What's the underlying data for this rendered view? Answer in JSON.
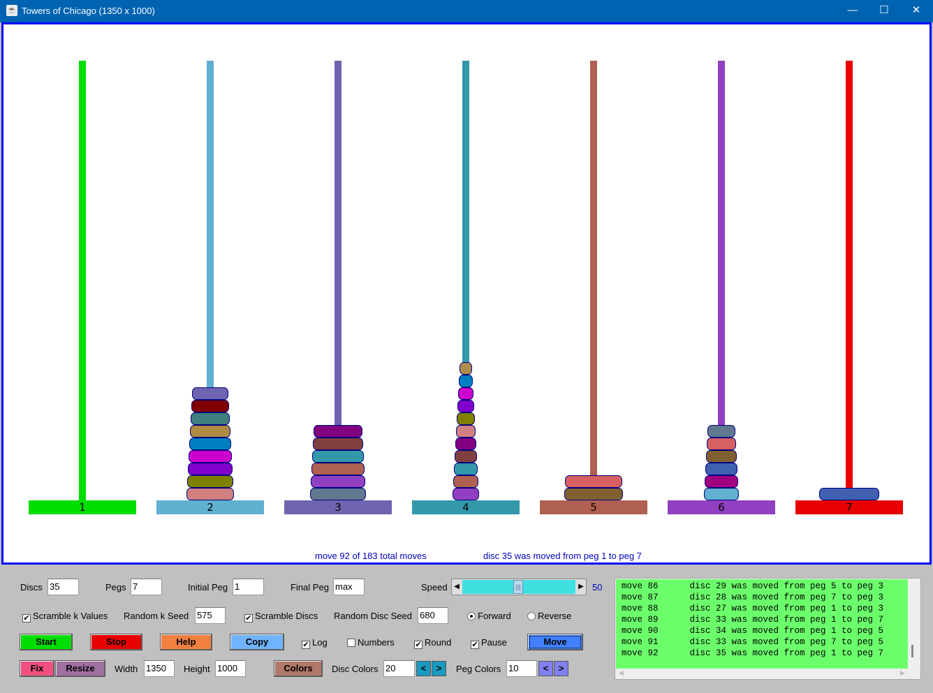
{
  "window": {
    "title": "Towers of Chicago  (1350  x  1000)",
    "minimize": "—",
    "maximize": "☐",
    "close": "✕"
  },
  "pegs": [
    {
      "label": "1",
      "color": "#00dd00",
      "discs": []
    },
    {
      "label": "2",
      "color": "#60b0d0",
      "discs": [
        {
          "n": 18,
          "color": "#6e64b0"
        },
        {
          "n": 19,
          "color": "#800000"
        },
        {
          "n": 20,
          "color": "#3f7f7f"
        },
        {
          "n": 21,
          "color": "#ae8a44"
        },
        {
          "n": 22,
          "color": "#0080c0"
        },
        {
          "n": 23,
          "color": "#cc00cc"
        },
        {
          "n": 24,
          "color": "#8000cc"
        },
        {
          "n": 25,
          "color": "#808000"
        },
        {
          "n": 26,
          "color": "#d08080"
        }
      ]
    },
    {
      "label": "3",
      "color": "#6e64b0",
      "discs": [
        {
          "n": 27,
          "color": "#800080"
        },
        {
          "n": 28,
          "color": "#804040"
        },
        {
          "n": 29,
          "color": "#3399aa"
        },
        {
          "n": 30,
          "color": "#b06050"
        },
        {
          "n": 31,
          "color": "#9040c0"
        },
        {
          "n": 32,
          "color": "#607890"
        }
      ]
    },
    {
      "label": "4",
      "color": "#3399aa",
      "discs": [
        {
          "n": 1,
          "color": "#b08c4c"
        },
        {
          "n": 2,
          "color": "#0080c0"
        },
        {
          "n": 3,
          "color": "#cc00cc"
        },
        {
          "n": 4,
          "color": "#8000cc"
        },
        {
          "n": 5,
          "color": "#808000"
        },
        {
          "n": 6,
          "color": "#d08080"
        },
        {
          "n": 7,
          "color": "#800080"
        },
        {
          "n": 8,
          "color": "#804040"
        },
        {
          "n": 9,
          "color": "#3399aa"
        },
        {
          "n": 10,
          "color": "#b06050"
        },
        {
          "n": 11,
          "color": "#9040c0"
        }
      ]
    },
    {
      "label": "5",
      "color": "#b06050",
      "discs": [
        {
          "n": 33,
          "color": "#d86060"
        },
        {
          "n": 34,
          "color": "#806030"
        }
      ]
    },
    {
      "label": "6",
      "color": "#9040c0",
      "discs": [
        {
          "n": 12,
          "color": "#607890"
        },
        {
          "n": 13,
          "color": "#d86060"
        },
        {
          "n": 14,
          "color": "#806030"
        },
        {
          "n": 15,
          "color": "#4060b0"
        },
        {
          "n": 16,
          "color": "#a00080"
        },
        {
          "n": 17,
          "color": "#60b0d0"
        }
      ]
    },
    {
      "label": "7",
      "color": "#e80000",
      "discs": [
        {
          "n": 35,
          "color": "#4060b0"
        }
      ]
    }
  ],
  "status": {
    "moves": "move 92 of 183 total moves",
    "last": "disc 35 was moved from peg 1 to peg 7"
  },
  "controls": {
    "discs_label": "Discs",
    "discs": "35",
    "pegs_label": "Pegs",
    "pegs": "7",
    "initial_label": "Initial Peg",
    "initial": "1",
    "final_label": "Final Peg",
    "final": "max",
    "speed_label": "Speed",
    "speed": "50",
    "scramble_k": "Scramble k Values",
    "scramble_k_checked": true,
    "k_seed_label": "Random k Seed",
    "k_seed": "575",
    "scramble_discs": "Scramble Discs",
    "scramble_discs_checked": true,
    "disc_seed_label": "Random Disc Seed",
    "disc_seed": "680",
    "forward": "Forward",
    "reverse": "Reverse",
    "direction": "Forward",
    "start": "Start",
    "stop": "Stop",
    "help": "Help",
    "copy": "Copy",
    "log": "Log",
    "numbers": "Numbers",
    "round": "Round",
    "pause": "Pause",
    "move": "Move",
    "fix": "Fix",
    "resize": "Resize",
    "width_label": "Width",
    "width": "1350",
    "height_label": "Height",
    "height": "1000",
    "colors": "Colors",
    "disc_colors_label": "Disc Colors",
    "disc_colors": "20",
    "peg_colors_label": "Peg Colors",
    "peg_colors": "10",
    "prev": "<",
    "next": ">"
  },
  "log": [
    "move 86      disc 29 was moved from peg 5 to peg 3",
    "move 87      disc 28 was moved from peg 7 to peg 3",
    "move 88      disc 27 was moved from peg 1 to peg 3",
    "move 89      disc 33 was moved from peg 1 to peg 7",
    "move 90      disc 34 was moved from peg 1 to peg 5",
    "move 91      disc 33 was moved from peg 7 to peg 5",
    "move 92      disc 35 was moved from peg 1 to peg 7"
  ]
}
